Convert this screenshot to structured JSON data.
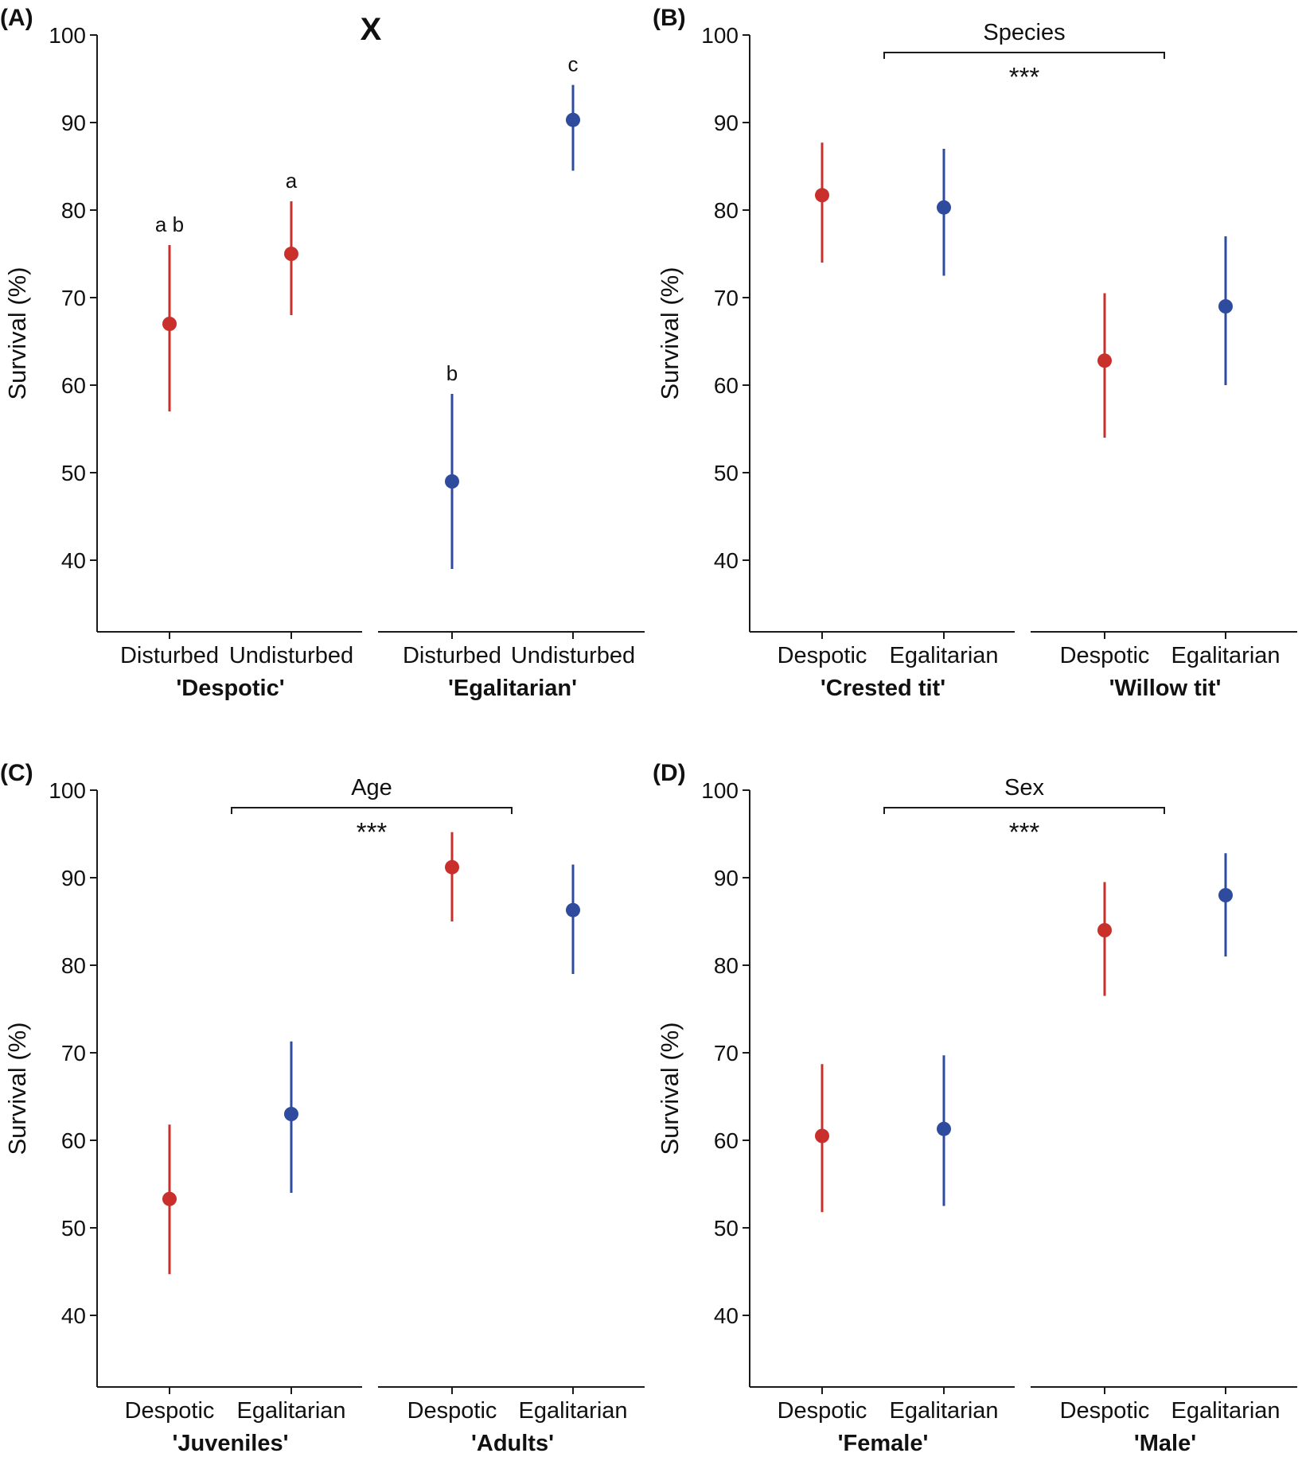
{
  "colors": {
    "despotic": "#c9302c",
    "egalitarian": "#2e4b9e",
    "axis": "#1a1a1a"
  },
  "figure_mark": "X",
  "chart_data": [
    {
      "panel": "(A)",
      "type": "scatter",
      "y_axis": {
        "label": "Survival (%)",
        "range": [
          32,
          100
        ],
        "ticks": [
          40,
          50,
          60,
          70,
          80,
          90,
          100
        ]
      },
      "groups": [
        {
          "label": "'Despotic'",
          "categories": [
            "Disturbed",
            "Undisturbed"
          ]
        },
        {
          "label": "'Egalitarian'",
          "categories": [
            "Disturbed",
            "Undisturbed"
          ]
        }
      ],
      "points": [
        {
          "group": 0,
          "index": 0,
          "y": 67,
          "lo": 57,
          "hi": 76,
          "color": "despotic",
          "letter": "a b"
        },
        {
          "group": 0,
          "index": 1,
          "y": 75,
          "lo": 68,
          "hi": 81,
          "color": "despotic",
          "letter": "a"
        },
        {
          "group": 1,
          "index": 0,
          "y": 49,
          "lo": 39,
          "hi": 59,
          "color": "egalitarian",
          "letter": "b"
        },
        {
          "group": 1,
          "index": 1,
          "y": 90.3,
          "lo": 84.5,
          "hi": 94.3,
          "color": "egalitarian",
          "letter": "c"
        }
      ]
    },
    {
      "panel": "(B)",
      "type": "scatter",
      "y_axis": {
        "label": "Survival (%)",
        "range": [
          32,
          100
        ],
        "ticks": [
          40,
          50,
          60,
          70,
          80,
          90,
          100
        ]
      },
      "groups": [
        {
          "label": "'Crested tit'",
          "categories": [
            "Despotic",
            "Egalitarian"
          ]
        },
        {
          "label": "'Willow tit'",
          "categories": [
            "Despotic",
            "Egalitarian"
          ]
        }
      ],
      "points": [
        {
          "group": 0,
          "index": 0,
          "y": 81.7,
          "lo": 74,
          "hi": 87.7,
          "color": "despotic"
        },
        {
          "group": 0,
          "index": 1,
          "y": 80.3,
          "lo": 72.5,
          "hi": 87,
          "color": "egalitarian"
        },
        {
          "group": 1,
          "index": 0,
          "y": 62.8,
          "lo": 54,
          "hi": 70.5,
          "color": "despotic"
        },
        {
          "group": 1,
          "index": 1,
          "y": 69,
          "lo": 60,
          "hi": 77,
          "color": "egalitarian"
        }
      ],
      "bracket": {
        "title": "Species",
        "stars": "***"
      }
    },
    {
      "panel": "(C)",
      "type": "scatter",
      "y_axis": {
        "label": "Survival (%)",
        "range": [
          32,
          100
        ],
        "ticks": [
          40,
          50,
          60,
          70,
          80,
          90,
          100
        ]
      },
      "groups": [
        {
          "label": "'Juveniles'",
          "categories": [
            "Despotic",
            "Egalitarian"
          ]
        },
        {
          "label": "'Adults'",
          "categories": [
            "Despotic",
            "Egalitarian"
          ]
        }
      ],
      "points": [
        {
          "group": 0,
          "index": 0,
          "y": 53.3,
          "lo": 44.7,
          "hi": 61.8,
          "color": "despotic"
        },
        {
          "group": 0,
          "index": 1,
          "y": 63,
          "lo": 54,
          "hi": 71.3,
          "color": "egalitarian"
        },
        {
          "group": 1,
          "index": 0,
          "y": 91.2,
          "lo": 85,
          "hi": 95.2,
          "color": "despotic"
        },
        {
          "group": 1,
          "index": 1,
          "y": 86.3,
          "lo": 79,
          "hi": 91.5,
          "color": "egalitarian"
        }
      ],
      "bracket": {
        "title": "Age",
        "stars": "***"
      }
    },
    {
      "panel": "(D)",
      "type": "scatter",
      "y_axis": {
        "label": "Survival (%)",
        "range": [
          32,
          100
        ],
        "ticks": [
          40,
          50,
          60,
          70,
          80,
          90,
          100
        ]
      },
      "groups": [
        {
          "label": "'Female'",
          "categories": [
            "Despotic",
            "Egalitarian"
          ]
        },
        {
          "label": "'Male'",
          "categories": [
            "Despotic",
            "Egalitarian"
          ]
        }
      ],
      "points": [
        {
          "group": 0,
          "index": 0,
          "y": 60.5,
          "lo": 51.8,
          "hi": 68.7,
          "color": "despotic"
        },
        {
          "group": 0,
          "index": 1,
          "y": 61.3,
          "lo": 52.5,
          "hi": 69.7,
          "color": "egalitarian"
        },
        {
          "group": 1,
          "index": 0,
          "y": 84,
          "lo": 76.5,
          "hi": 89.5,
          "color": "despotic"
        },
        {
          "group": 1,
          "index": 1,
          "y": 88,
          "lo": 81,
          "hi": 92.8,
          "color": "egalitarian"
        }
      ],
      "bracket": {
        "title": "Sex",
        "stars": "***"
      }
    }
  ]
}
